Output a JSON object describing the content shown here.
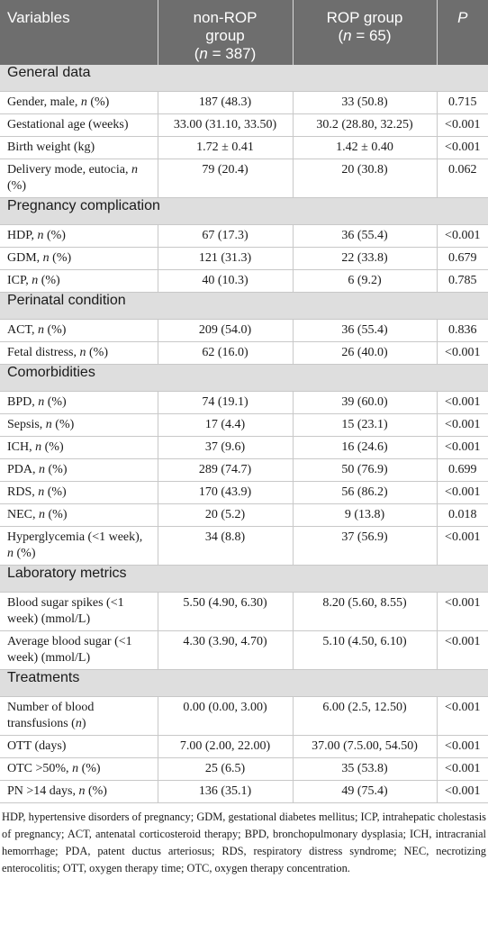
{
  "headers": {
    "variables": "Variables",
    "nonrop_l1": "non-ROP",
    "nonrop_l2": "group",
    "nonrop_l3a": "(",
    "nonrop_n": "n",
    "nonrop_l3b": " = 387)",
    "rop_l1": "ROP group",
    "rop_l2a": "(",
    "rop_n": "n",
    "rop_l2b": " = 65)",
    "p": "P"
  },
  "sections": [
    {
      "title": "General data",
      "rows": [
        {
          "label": "Gender, male, ",
          "label_ital": "n",
          "label_tail": " (%)",
          "a": "187 (48.3)",
          "b": "33 (50.8)",
          "p": "0.715",
          "lines": 1
        },
        {
          "label": "Gestational age (weeks)",
          "label_ital": "",
          "label_tail": "",
          "a": "33.00 (31.10, 33.50)",
          "b": "30.2 (28.80, 32.25)",
          "p": "<0.001",
          "lines": 1
        },
        {
          "label": "Birth weight (kg)",
          "label_ital": "",
          "label_tail": "",
          "a": "1.72 ± 0.41",
          "b": "1.42 ± 0.40",
          "p": "<0.001",
          "lines": 1
        },
        {
          "label": "Delivery mode, eutocia, ",
          "label_ital": "n",
          "label_tail": " (%)",
          "a": "79 (20.4)",
          "b": "20 (30.8)",
          "p": "0.062",
          "lines": 2
        }
      ]
    },
    {
      "title": "Pregnancy complication",
      "rows": [
        {
          "label": "HDP, ",
          "label_ital": "n",
          "label_tail": " (%)",
          "a": "67 (17.3)",
          "b": "36 (55.4)",
          "p": "<0.001",
          "lines": 1
        },
        {
          "label": "GDM, ",
          "label_ital": "n",
          "label_tail": " (%)",
          "a": "121 (31.3)",
          "b": "22 (33.8)",
          "p": "0.679",
          "lines": 1
        },
        {
          "label": "ICP, ",
          "label_ital": "n",
          "label_tail": " (%)",
          "a": "40 (10.3)",
          "b": "6 (9.2)",
          "p": "0.785",
          "lines": 1
        }
      ]
    },
    {
      "title": "Perinatal condition",
      "rows": [
        {
          "label": "ACT, ",
          "label_ital": "n",
          "label_tail": " (%)",
          "a": "209 (54.0)",
          "b": "36 (55.4)",
          "p": "0.836",
          "lines": 1
        },
        {
          "label": "Fetal distress, ",
          "label_ital": "n",
          "label_tail": " (%)",
          "a": "62 (16.0)",
          "b": "26 (40.0)",
          "p": "<0.001",
          "lines": 1
        }
      ]
    },
    {
      "title": "Comorbidities",
      "rows": [
        {
          "label": "BPD, ",
          "label_ital": "n",
          "label_tail": " (%)",
          "a": "74 (19.1)",
          "b": "39 (60.0)",
          "p": "<0.001",
          "lines": 1
        },
        {
          "label": "Sepsis, ",
          "label_ital": "n",
          "label_tail": " (%)",
          "a": "17 (4.4)",
          "b": "15 (23.1)",
          "p": "<0.001",
          "lines": 1
        },
        {
          "label": "ICH, ",
          "label_ital": "n",
          "label_tail": " (%)",
          "a": "37 (9.6)",
          "b": "16 (24.6)",
          "p": "<0.001",
          "lines": 1
        },
        {
          "label": "PDA, ",
          "label_ital": "n",
          "label_tail": " (%)",
          "a": "289 (74.7)",
          "b": "50 (76.9)",
          "p": "0.699",
          "lines": 1
        },
        {
          "label": "RDS, ",
          "label_ital": "n",
          "label_tail": " (%)",
          "a": "170 (43.9)",
          "b": "56 (86.2)",
          "p": "<0.001",
          "lines": 1
        },
        {
          "label": "NEC, ",
          "label_ital": "n",
          "label_tail": " (%)",
          "a": "20 (5.2)",
          "b": "9 (13.8)",
          "p": "0.018",
          "lines": 1
        },
        {
          "label": "Hyperglycemia (<1 week), ",
          "label_ital": "n",
          "label_tail": " (%)",
          "a": "34 (8.8)",
          "b": "37 (56.9)",
          "p": "<0.001",
          "lines": 2
        }
      ]
    },
    {
      "title": "Laboratory metrics",
      "rows": [
        {
          "label": "Blood sugar spikes (<1 week) (mmol/L)",
          "label_ital": "",
          "label_tail": "",
          "a": "5.50 (4.90, 6.30)",
          "b": "8.20 (5.60, 8.55)",
          "p": "<0.001",
          "lines": 2
        },
        {
          "label": "Average blood sugar (<1 week) (mmol/L)",
          "label_ital": "",
          "label_tail": "",
          "a": "4.30 (3.90, 4.70)",
          "b": "5.10 (4.50, 6.10)",
          "p": "<0.001",
          "lines": 2
        }
      ]
    },
    {
      "title": "Treatments",
      "rows": [
        {
          "label": "Number of blood transfusions (",
          "label_ital": "n",
          "label_tail": ")",
          "a": "0.00 (0.00, 3.00)",
          "b": "6.00 (2.5, 12.50)",
          "p": "<0.001",
          "lines": 2
        },
        {
          "label": "OTT (days)",
          "label_ital": "",
          "label_tail": "",
          "a": "7.00 (2.00, 22.00)",
          "b": "37.00 (7.5.00, 54.50)",
          "p": "<0.001",
          "lines": 1
        },
        {
          "label": "OTC >50%, ",
          "label_ital": "n",
          "label_tail": " (%)",
          "a": "25 (6.5)",
          "b": "35 (53.8)",
          "p": "<0.001",
          "lines": 1
        },
        {
          "label": "PN >14 days, ",
          "label_ital": "n",
          "label_tail": " (%)",
          "a": "136 (35.1)",
          "b": "49 (75.4)",
          "p": "<0.001",
          "lines": 1
        }
      ]
    }
  ],
  "footnote": "HDP, hypertensive disorders of pregnancy; GDM, gestational diabetes mellitus; ICP, intrahepatic cholestasis of pregnancy; ACT, antenatal corticosteroid therapy; BPD, bronchopulmonary dysplasia; ICH, intracranial hemorrhage; PDA, patent ductus arteriosus; RDS, respiratory distress syndrome; NEC, necrotizing enterocolitis; OTT, oxygen therapy time; OTC, oxygen therapy concentration."
}
